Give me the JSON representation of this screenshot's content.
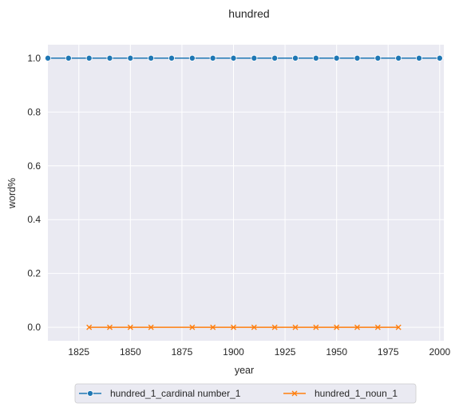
{
  "chart_data": {
    "type": "line",
    "title": "hundred",
    "xlabel": "year",
    "ylabel": "word%",
    "xlim": [
      1810,
      2002
    ],
    "ylim": [
      -0.05,
      1.05
    ],
    "xticks": [
      1825,
      1850,
      1875,
      1900,
      1925,
      1950,
      1975,
      2000
    ],
    "yticks": [
      0.0,
      0.2,
      0.4,
      0.6,
      0.8,
      1.0
    ],
    "grid": true,
    "legend_position": "bottom-center",
    "series": [
      {
        "name": "hundred_1_cardinal number_1",
        "color": "#1f77b4",
        "marker": "circle",
        "x": [
          1810,
          1820,
          1830,
          1840,
          1850,
          1860,
          1870,
          1880,
          1890,
          1900,
          1910,
          1920,
          1930,
          1940,
          1950,
          1960,
          1970,
          1980,
          1990,
          2000
        ],
        "y": [
          1.0,
          1.0,
          1.0,
          1.0,
          1.0,
          1.0,
          1.0,
          1.0,
          1.0,
          1.0,
          1.0,
          1.0,
          1.0,
          1.0,
          1.0,
          1.0,
          1.0,
          1.0,
          1.0,
          1.0
        ]
      },
      {
        "name": "hundred_1_noun_1",
        "color": "#ff7f0e",
        "marker": "x",
        "x": [
          1830,
          1840,
          1850,
          1860,
          1880,
          1890,
          1900,
          1910,
          1920,
          1930,
          1940,
          1950,
          1960,
          1970,
          1980
        ],
        "y": [
          0.0,
          0.0,
          0.0,
          0.0,
          0.0,
          0.0,
          0.0,
          0.0,
          0.0,
          0.0,
          0.0,
          0.0,
          0.0,
          0.0,
          0.0
        ]
      }
    ]
  }
}
